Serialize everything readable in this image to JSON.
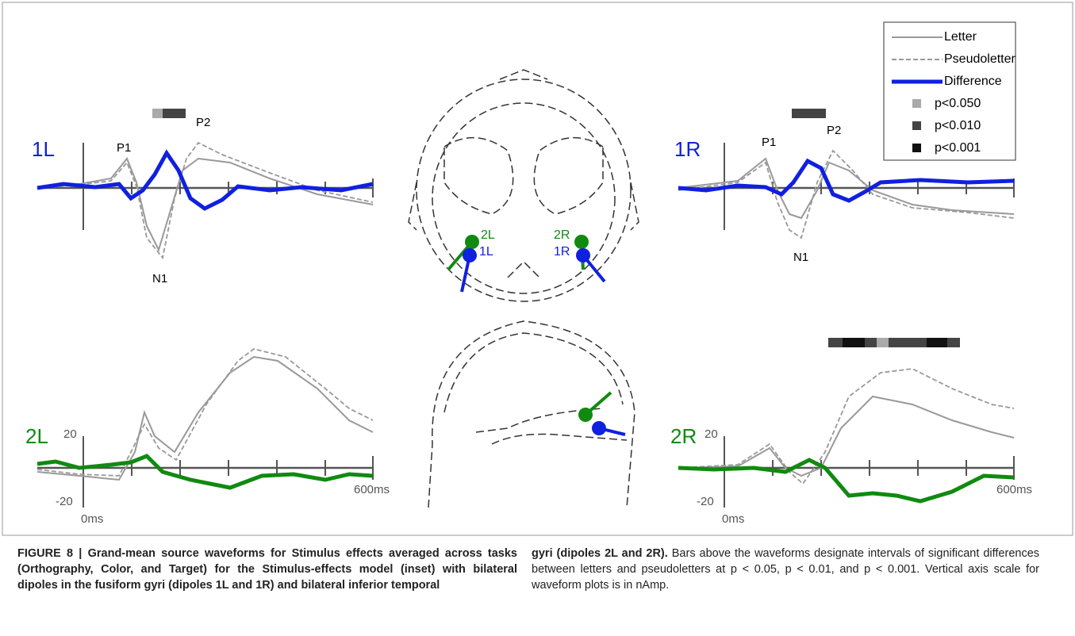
{
  "panels": [
    {
      "label": "1L",
      "peaks": [
        "P1",
        "P2",
        "N1"
      ]
    },
    {
      "label": "1R",
      "peaks": [
        "P1",
        "P2",
        "N1"
      ]
    },
    {
      "label": "2L",
      "y_top": "20",
      "y_bottom": "-20",
      "x_start": "0ms",
      "x_end": "600ms"
    },
    {
      "label": "2R",
      "y_top": "20",
      "y_bottom": "-20",
      "x_start": "0ms",
      "x_end": "600ms"
    }
  ],
  "inset": {
    "labels": [
      "2L",
      "1L",
      "2R",
      "1R"
    ]
  },
  "legend": [
    "Letter",
    "Pseudoletter",
    "Difference",
    "p<0.050",
    "p<0.010",
    "p<0.001"
  ],
  "caption": {
    "title_start": "FIGURE 8 | Grand-mean source waveforms for Stimulus effects averaged across tasks (Orthography, Color, and Target) for the Stimulus-effects model (inset) with bilateral dipoles in the fusiform gyri (dipoles 1L and 1R) and bilateral inferior temporal",
    "title_end": "gyri (dipoles 2L and 2R).",
    "body": "Bars above the waveforms designate intervals of significant differences between letters and pseudoletters at p < 0.05, p < 0.01, and p < 0.001. Vertical axis scale for waveform plots is in nAmp."
  }
}
